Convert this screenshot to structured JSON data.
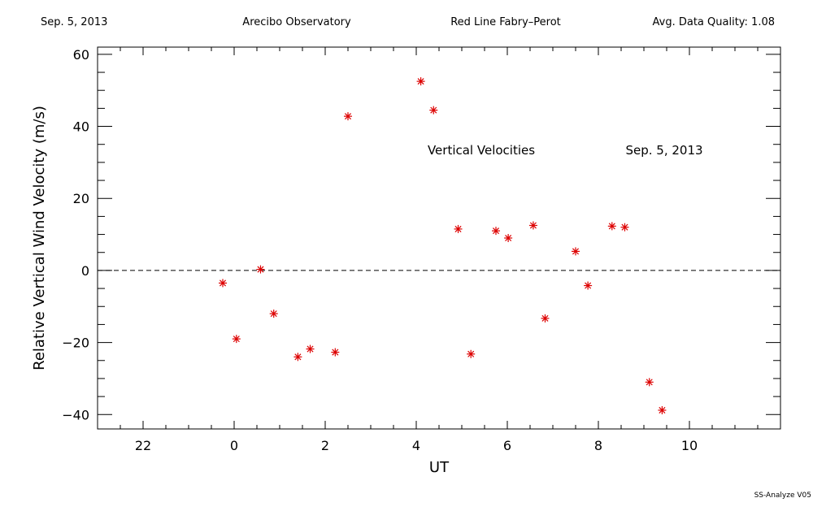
{
  "header": {
    "date": "Sep. 5, 2013",
    "site": "Arecibo Observatory",
    "instrument": "Red Line Fabry–Perot",
    "quality": "Avg. Data Quality: 1.08"
  },
  "footer": "SS-Analyze V05",
  "chart_data": {
    "type": "scatter",
    "xlabel": "UT",
    "ylabel": "Relative Vertical Wind Velocity (m/s)",
    "xlim": [
      -3,
      12
    ],
    "ylim": [
      -44,
      62
    ],
    "x_major_ticks": [
      -2,
      0,
      2,
      4,
      6,
      8,
      10
    ],
    "x_tick_labels": [
      "22",
      "0",
      "2",
      "4",
      "6",
      "8",
      "10"
    ],
    "x_minor_step": 0.5,
    "y_major_ticks": [
      -40,
      -20,
      0,
      20,
      40,
      60
    ],
    "y_tick_labels": [
      "−40",
      "−20",
      "0",
      "20",
      "40",
      "60"
    ],
    "y_minor_step": 5,
    "grid": false,
    "reference_line": {
      "y": 0,
      "style": "dashed"
    },
    "marker": "asterisk",
    "marker_color": "#dd0000",
    "annotations": [
      "Vertical Velocities",
      "Sep. 5, 2013"
    ],
    "series": [
      {
        "x": [
          -0.25,
          0.05,
          0.58,
          0.87,
          1.4,
          1.67,
          2.22,
          2.5,
          4.1,
          4.38,
          4.92,
          5.2,
          5.75,
          6.02,
          6.57,
          6.83,
          7.5,
          7.77,
          8.3,
          8.58,
          9.12,
          9.4
        ],
        "y": [
          -3.5,
          -19,
          0.3,
          -12,
          -24,
          -21.8,
          -22.7,
          42.8,
          52.5,
          44.5,
          11.5,
          -23.2,
          11,
          9,
          12.5,
          -13.3,
          5.3,
          -4.2,
          12.3,
          12,
          -31,
          -38.8
        ]
      }
    ]
  }
}
